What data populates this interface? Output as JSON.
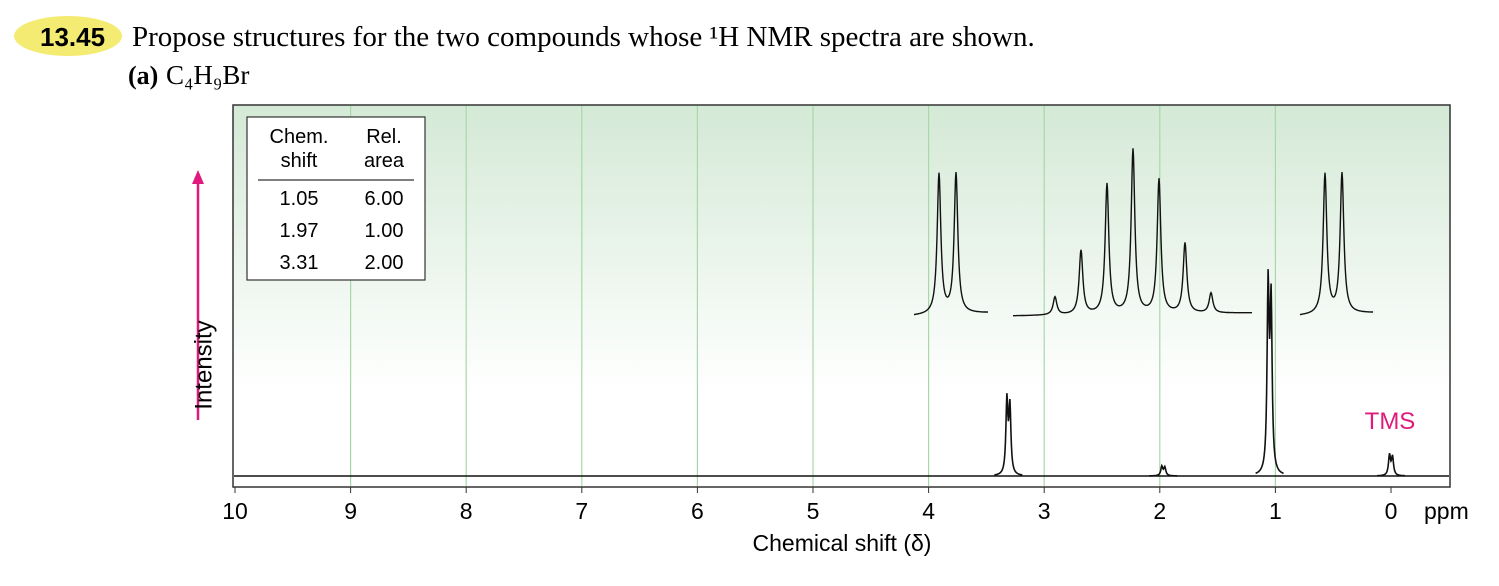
{
  "problem": {
    "number": "13.45",
    "text": "Propose structures for the two compounds whose ¹H NMR spectra are shown.",
    "part": "(a)",
    "formula": "C₄H₉Br"
  },
  "chart_data": {
    "type": "nmr",
    "x_label": "Chemical shift (δ)",
    "x_unit": "ppm",
    "y_label": "Intensity",
    "xlim": [
      10,
      0
    ],
    "xticks": [
      10,
      9,
      8,
      7,
      6,
      5,
      4,
      3,
      2,
      1,
      0
    ],
    "grid": true,
    "peaks": {
      "x": [
        3.31,
        1.97,
        1.05,
        0
      ],
      "values": [
        40,
        5,
        100,
        11
      ]
    },
    "annotation": "TMS",
    "table": {
      "headers": [
        [
          "Chem.",
          "shift"
        ],
        [
          "Rel.",
          "area"
        ]
      ],
      "rows": [
        [
          "1.05",
          "6.00"
        ],
        [
          "1.97",
          "1.00"
        ],
        [
          "3.31",
          "2.00"
        ]
      ]
    }
  }
}
